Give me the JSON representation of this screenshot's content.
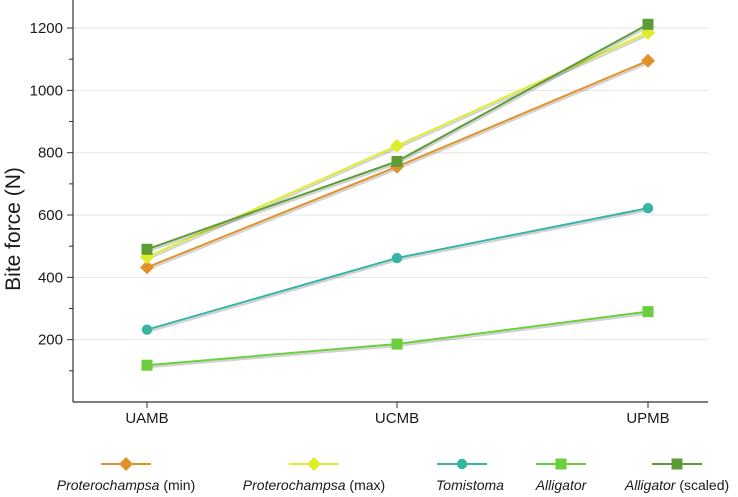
{
  "chart_data": {
    "type": "line",
    "title": "",
    "xlabel": "",
    "ylabel": "Bite force (N)",
    "categories": [
      "UAMB",
      "UCMB",
      "UPMB"
    ],
    "ylim": [
      0,
      1290
    ],
    "yticks": [
      200,
      400,
      600,
      800,
      1000,
      1200
    ],
    "grid": "horizontal",
    "legend_position": "bottom",
    "series": [
      {
        "name": "Proterochampsa (min)",
        "italic": "Proterochampsa",
        "suffix": " (min)",
        "values": [
          432,
          755,
          1095
        ],
        "color": "#e0912a",
        "marker": "diamond"
      },
      {
        "name": "Proterochampsa (max)",
        "italic": "Proterochampsa",
        "suffix": " (max)",
        "values": [
          465,
          822,
          1185
        ],
        "color": "#dced2b",
        "marker": "diamond"
      },
      {
        "name": "Tomistoma",
        "italic": "Tomistoma",
        "suffix": "",
        "values": [
          232,
          462,
          622
        ],
        "color": "#36b5a4",
        "marker": "circle"
      },
      {
        "name": "Alligator",
        "italic": "Alligator",
        "suffix": "",
        "values": [
          118,
          186,
          290
        ],
        "color": "#6acf3c",
        "marker": "square"
      },
      {
        "name": "Alligator (scaled)",
        "italic": "Alligator",
        "suffix": " (scaled)",
        "values": [
          490,
          772,
          1212
        ],
        "color": "#5c9b35",
        "marker": "square"
      }
    ]
  }
}
